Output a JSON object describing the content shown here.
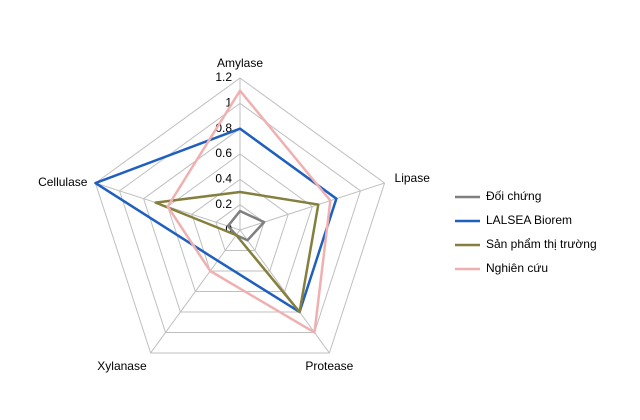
{
  "chart_data": {
    "type": "radar",
    "categories": [
      "Amylase",
      "Lipase",
      "Protease",
      "Xylanase",
      "Cellulase"
    ],
    "rlim": [
      0,
      1.2
    ],
    "rticks": [
      0,
      0.2,
      0.4,
      0.6,
      0.8,
      1,
      1.2
    ],
    "grid": true,
    "legend": "right",
    "series": [
      {
        "name": "Đối chứng",
        "color": "#7f7f7f",
        "values": [
          0.15,
          0.2,
          0.1,
          0.05,
          0.1
        ]
      },
      {
        "name": "LALSEA Biorem",
        "color": "#1f5fbf",
        "values": [
          0.8,
          0.8,
          0.8,
          0.3,
          1.2
        ]
      },
      {
        "name": "Sản phẩm thị trường",
        "color": "#847f3c",
        "values": [
          0.3,
          0.65,
          0.8,
          0.05,
          0.7
        ]
      },
      {
        "name": "Nghiên cứu",
        "color": "#f0b0b0",
        "values": [
          1.1,
          0.75,
          1.0,
          0.4,
          0.6
        ]
      }
    ]
  }
}
